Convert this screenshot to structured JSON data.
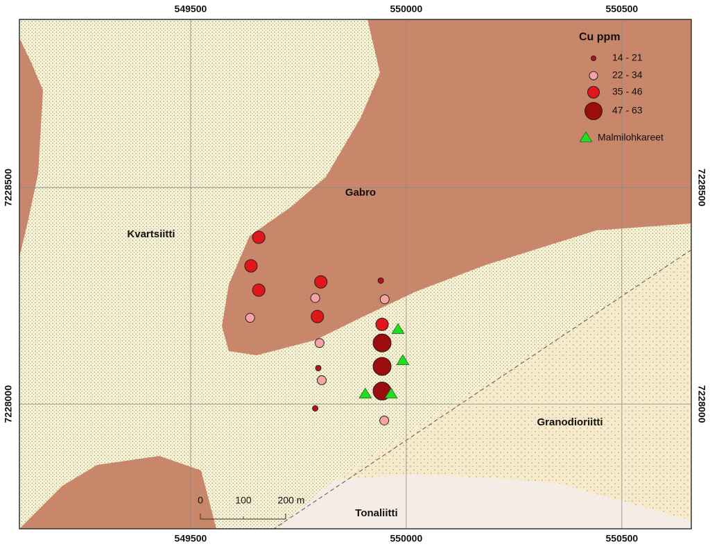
{
  "map": {
    "xlim": [
      549103,
      550661
    ],
    "ylim": [
      7227712,
      7228888
    ],
    "xticks": [
      549500,
      550000,
      550500
    ],
    "yticks": [
      7228000,
      7228500
    ]
  },
  "legend": {
    "title": "Cu ppm",
    "classes": [
      {
        "label": "14 - 21",
        "color": "#b5141b",
        "samples": [
          {
            "x": 549941,
            "y": 7228285
          },
          {
            "x": 549796,
            "y": 7228083
          },
          {
            "x": 549789,
            "y": 7227990
          }
        ]
      },
      {
        "label": "22 - 34",
        "color": "#f6a3a3",
        "samples": [
          {
            "x": 549638,
            "y": 7228199
          },
          {
            "x": 549789,
            "y": 7228245
          },
          {
            "x": 549799,
            "y": 7228141
          },
          {
            "x": 549804,
            "y": 7228055
          },
          {
            "x": 549950,
            "y": 7228242
          },
          {
            "x": 549949,
            "y": 7227962
          }
        ]
      },
      {
        "label": "35 - 46",
        "color": "#e0161b",
        "samples": [
          {
            "x": 549658,
            "y": 7228385
          },
          {
            "x": 549640,
            "y": 7228319
          },
          {
            "x": 549658,
            "y": 7228263
          },
          {
            "x": 549802,
            "y": 7228282
          },
          {
            "x": 549794,
            "y": 7228202
          },
          {
            "x": 549944,
            "y": 7228184
          }
        ]
      },
      {
        "label": "47 - 63",
        "color": "#9b0c0c",
        "samples": [
          {
            "x": 549944,
            "y": 7228141
          },
          {
            "x": 549944,
            "y": 7228087
          },
          {
            "x": 549944,
            "y": 7228030
          }
        ]
      }
    ],
    "boulders": {
      "label": "Malmilohkareet",
      "color": "#22dd22",
      "samples": [
        {
          "x": 549981,
          "y": 7228173
        },
        {
          "x": 549992,
          "y": 7228101
        },
        {
          "x": 549905,
          "y": 7228024
        },
        {
          "x": 549965,
          "y": 7228024
        }
      ]
    }
  },
  "units": {
    "gabro": "Gabro",
    "quartzite": "Kvartsiitti",
    "granodiorite": "Granodioriitti",
    "tonalite": "Tonaliitti"
  },
  "scale_bar": {
    "labels": [
      "0",
      "100",
      "200 m"
    ]
  }
}
